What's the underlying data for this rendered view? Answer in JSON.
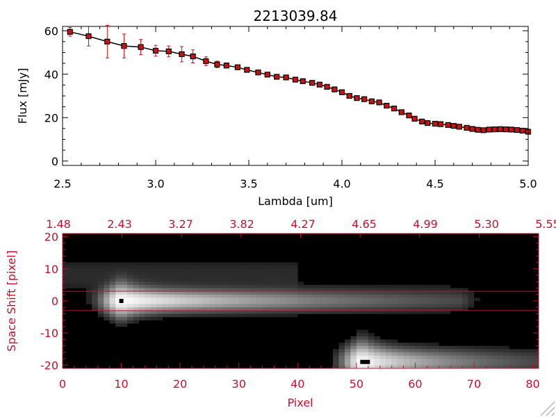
{
  "colors": {
    "ink": "#000000",
    "error_bar": "#cc1111",
    "marker_fill": "#cc1111",
    "accent": "#c8102e",
    "image_bg": "#000000"
  },
  "chart_data": [
    {
      "type": "line",
      "title": "2213039.84",
      "xlabel": "Lambda [um]",
      "ylabel": "Flux [mJy]",
      "xlim": [
        2.5,
        5.0
      ],
      "ylim": [
        -2,
        62
      ],
      "x_ticks": [
        {
          "value": 2.5,
          "label": "2.5"
        },
        {
          "value": 3.0,
          "label": "3.0"
        },
        {
          "value": 3.5,
          "label": "3.5"
        },
        {
          "value": 4.0,
          "label": "4.0"
        },
        {
          "value": 4.5,
          "label": "4.5"
        },
        {
          "value": 5.0,
          "label": "5.0"
        }
      ],
      "y_ticks": [
        {
          "value": 0,
          "label": "0"
        },
        {
          "value": 20,
          "label": "20"
        },
        {
          "value": 40,
          "label": "40"
        },
        {
          "value": 60,
          "label": "60"
        }
      ],
      "series": [
        {
          "x": [
            2.54,
            2.64,
            2.74,
            2.83,
            2.92,
            3.0,
            3.07,
            3.14,
            3.2,
            3.27,
            3.33,
            3.38,
            3.44,
            3.49,
            3.55,
            3.6,
            3.65,
            3.7,
            3.75,
            3.79,
            3.84,
            3.88,
            3.92,
            3.96,
            4.0,
            4.04,
            4.08,
            4.12,
            4.16,
            4.2,
            4.24,
            4.28,
            4.32,
            4.36,
            4.39,
            4.43,
            4.46,
            4.5,
            4.53,
            4.57,
            4.6,
            4.63,
            4.67,
            4.7,
            4.73,
            4.76,
            4.79,
            4.82,
            4.85,
            4.88,
            4.91,
            4.94,
            4.97,
            5.0
          ],
          "y": [
            59.5,
            57.5,
            55,
            53,
            52.5,
            50.8,
            50.5,
            49.2,
            48.2,
            46,
            44.5,
            44,
            43.2,
            42,
            40.8,
            39.8,
            38.8,
            38.5,
            37.5,
            36.8,
            36,
            35.2,
            34.2,
            33,
            31.7,
            30,
            29,
            28.5,
            27.5,
            27,
            25.5,
            24.2,
            22.5,
            21,
            19.5,
            18.2,
            17.5,
            17.2,
            17,
            16.6,
            16.2,
            15.8,
            15.3,
            14.8,
            14.4,
            14.2,
            14.5,
            14.6,
            14.7,
            14.6,
            14.5,
            14.3,
            14,
            13.5
          ],
          "yerr": [
            2,
            4.5,
            7.5,
            5.5,
            3.5,
            2.5,
            2.5,
            3.5,
            3,
            2,
            1.5,
            1.2,
            0.5,
            0.5,
            0.5,
            0.5,
            0.5,
            0.5,
            0.5,
            0.5,
            0.5,
            0.5,
            0.5,
            0.5,
            0.5,
            0.5,
            0.5,
            0.5,
            0.5,
            0.5,
            0.5,
            0.5,
            0.5,
            0.5,
            0.5,
            0.5,
            0.5,
            0.5,
            0.5,
            0.5,
            0.5,
            0.5,
            0.5,
            0.5,
            0.5,
            0.5,
            0.5,
            0.5,
            0.5,
            0.5,
            0.5,
            0.5,
            0.5,
            0.5
          ]
        }
      ]
    },
    {
      "type": "heatmap",
      "title": "",
      "xlabel": "Pixel",
      "ylabel": "Space Shift [pixel]",
      "xlim": [
        0,
        81
      ],
      "ylim": [
        -21,
        21
      ],
      "x_ticks": [
        {
          "value": 0,
          "label": "0"
        },
        {
          "value": 10,
          "label": "10"
        },
        {
          "value": 20,
          "label": "20"
        },
        {
          "value": 30,
          "label": "30"
        },
        {
          "value": 40,
          "label": "40"
        },
        {
          "value": 50,
          "label": "50"
        },
        {
          "value": 60,
          "label": "60"
        },
        {
          "value": 70,
          "label": "70"
        },
        {
          "value": 80,
          "label": "80"
        }
      ],
      "y_ticks": [
        {
          "value": 20,
          "label": "20"
        },
        {
          "value": 10,
          "label": "10"
        },
        {
          "value": 0,
          "label": "0"
        },
        {
          "value": -10,
          "label": "-10"
        },
        {
          "value": -20,
          "label": "-20"
        }
      ],
      "top_axis_labels": [
        "1.48",
        "2.43",
        "3.27",
        "3.82",
        "4.27",
        "4.65",
        "4.99",
        "5.30",
        "5.55"
      ],
      "extraction_window": [
        -3,
        3
      ],
      "sources": [
        {
          "x0": 10,
          "y0": 0,
          "peak": 1.0,
          "tail_to": 68,
          "width": 2.2
        },
        {
          "x0": 51,
          "y0": -19,
          "peak": 1.0,
          "tail_to": 81,
          "width": 2.6
        }
      ]
    }
  ]
}
